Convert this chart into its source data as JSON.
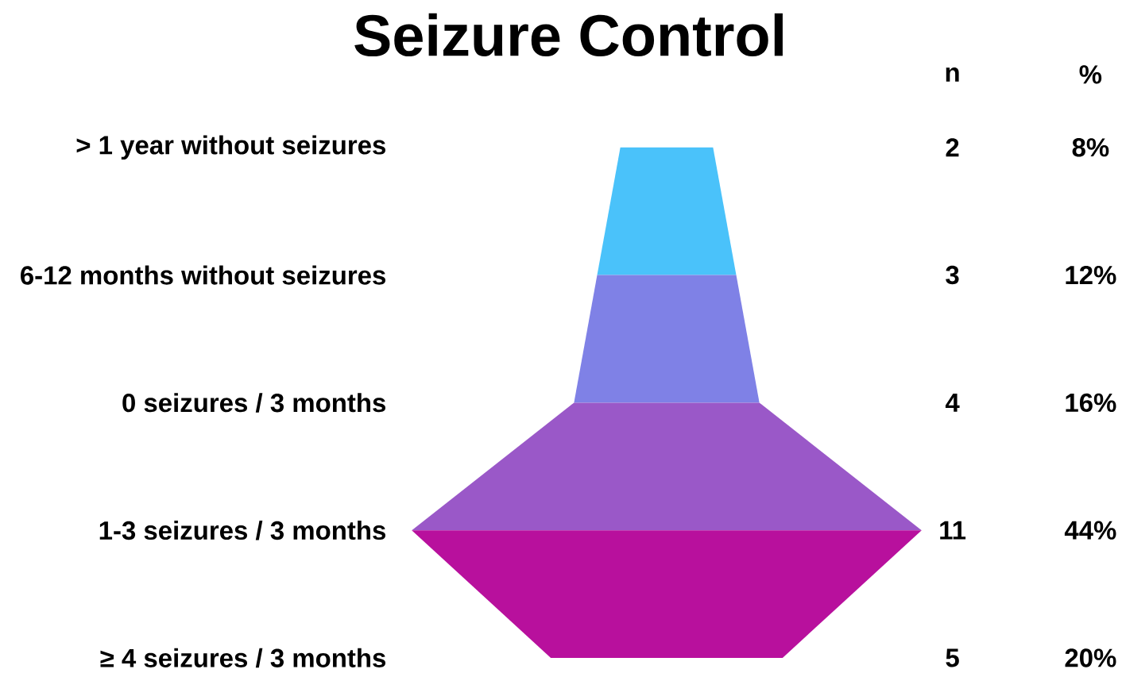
{
  "chart_data": {
    "type": "other",
    "title": "Seizure Control",
    "categories": [
      "> 1 year without seizures",
      "6-12 months without seizures",
      "0 seizures / 3 months",
      "1-3 seizures / 3 months",
      "≥ 4 seizures / 3 months"
    ],
    "series": [
      {
        "name": "n",
        "values": [
          2,
          3,
          4,
          11,
          5
        ],
        "value_labels": [
          "2",
          "3",
          "4",
          "11",
          "5"
        ]
      },
      {
        "name": "%",
        "values": [
          8,
          12,
          16,
          44,
          20
        ],
        "value_labels": [
          "8%",
          "12%",
          "16%",
          "44%",
          "20%"
        ]
      }
    ],
    "colors": [
      "#4ac2fa",
      "#7f81e6",
      "#9a58c8",
      "#b8109d"
    ]
  }
}
